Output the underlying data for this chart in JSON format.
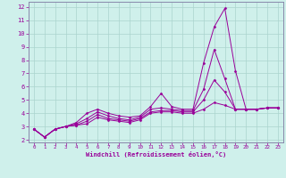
{
  "xlabel": "Windchill (Refroidissement éolien,°C)",
  "background_color": "#cff0eb",
  "grid_color": "#aad4ce",
  "line_color": "#990099",
  "spine_color": "#8888aa",
  "xlim": [
    -0.5,
    23.5
  ],
  "ylim": [
    1.8,
    12.4
  ],
  "xticks": [
    0,
    1,
    2,
    3,
    4,
    5,
    6,
    7,
    8,
    9,
    10,
    11,
    12,
    13,
    14,
    15,
    16,
    17,
    18,
    19,
    20,
    21,
    22,
    23
  ],
  "yticks": [
    2,
    3,
    4,
    5,
    6,
    7,
    8,
    9,
    10,
    11,
    12
  ],
  "lines": [
    {
      "x": [
        0,
        1,
        2,
        3,
        4,
        5,
        6,
        7,
        8,
        9,
        10,
        11,
        12,
        13,
        14,
        15,
        16,
        17,
        18,
        19,
        20,
        21,
        22,
        23
      ],
      "y": [
        2.8,
        2.2,
        2.8,
        3.0,
        3.3,
        4.0,
        4.3,
        4.0,
        3.8,
        3.7,
        3.8,
        4.5,
        5.5,
        4.5,
        4.3,
        4.3,
        7.8,
        10.5,
        11.9,
        7.2,
        4.3,
        4.3,
        4.4,
        4.4
      ]
    },
    {
      "x": [
        0,
        1,
        2,
        3,
        4,
        5,
        6,
        7,
        8,
        9,
        10,
        11,
        12,
        13,
        14,
        15,
        16,
        17,
        18,
        19,
        20,
        21,
        22,
        23
      ],
      "y": [
        2.8,
        2.2,
        2.8,
        3.0,
        3.2,
        3.6,
        4.1,
        3.8,
        3.6,
        3.5,
        3.7,
        4.3,
        4.4,
        4.3,
        4.2,
        4.2,
        5.8,
        8.8,
        6.6,
        4.3,
        4.3,
        4.3,
        4.4,
        4.4
      ]
    },
    {
      "x": [
        0,
        1,
        2,
        3,
        4,
        5,
        6,
        7,
        8,
        9,
        10,
        11,
        12,
        13,
        14,
        15,
        16,
        17,
        18,
        19,
        20,
        21,
        22,
        23
      ],
      "y": [
        2.8,
        2.2,
        2.8,
        3.0,
        3.1,
        3.4,
        3.9,
        3.6,
        3.5,
        3.4,
        3.6,
        4.1,
        4.2,
        4.2,
        4.1,
        4.1,
        5.0,
        6.5,
        5.6,
        4.3,
        4.3,
        4.3,
        4.4,
        4.4
      ]
    },
    {
      "x": [
        0,
        1,
        2,
        3,
        4,
        5,
        6,
        7,
        8,
        9,
        10,
        11,
        12,
        13,
        14,
        15,
        16,
        17,
        18,
        19,
        20,
        21,
        22,
        23
      ],
      "y": [
        2.8,
        2.2,
        2.8,
        3.0,
        3.1,
        3.2,
        3.7,
        3.5,
        3.4,
        3.3,
        3.5,
        4.0,
        4.1,
        4.1,
        4.0,
        4.0,
        4.3,
        4.8,
        4.6,
        4.3,
        4.3,
        4.3,
        4.4,
        4.4
      ]
    }
  ]
}
